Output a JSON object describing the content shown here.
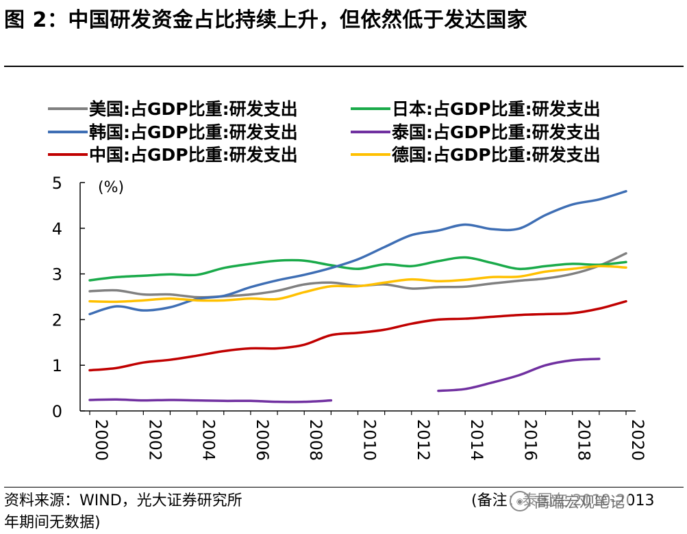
{
  "title": "图 2：中国研发资金占比持续上升，但依然低于发达国家",
  "source": "资料来源：WIND，光大证券研究所",
  "note": "(备注：泰国在 2010-2013",
  "note_continued": "年期间无数据)",
  "watermark": "高端宏观笔记",
  "chart_data": {
    "type": "line",
    "title": "",
    "ylabel": "(%)",
    "xlabel": "",
    "ylim": [
      0,
      5
    ],
    "yticks": [
      0,
      1,
      2,
      3,
      4,
      5
    ],
    "xlim": [
      2000,
      2020
    ],
    "xticks": [
      "2000",
      "2002",
      "2004",
      "2006",
      "2008",
      "2010",
      "2012",
      "2014",
      "2016",
      "2018",
      "2020"
    ],
    "legend_position": "top",
    "series": [
      {
        "name": "美国:占GDP比重:研发支出",
        "color": "#808080",
        "x": [
          2000,
          2001,
          2002,
          2003,
          2004,
          2005,
          2006,
          2007,
          2008,
          2009,
          2010,
          2011,
          2012,
          2013,
          2014,
          2015,
          2016,
          2017,
          2018,
          2019,
          2020
        ],
        "values": [
          2.62,
          2.64,
          2.55,
          2.55,
          2.49,
          2.51,
          2.55,
          2.63,
          2.77,
          2.81,
          2.74,
          2.77,
          2.68,
          2.71,
          2.72,
          2.79,
          2.85,
          2.9,
          3.0,
          3.18,
          3.45
        ]
      },
      {
        "name": "日本:占GDP比重:研发支出",
        "color": "#1aaa4a",
        "x": [
          2000,
          2001,
          2002,
          2003,
          2004,
          2005,
          2006,
          2007,
          2008,
          2009,
          2010,
          2011,
          2012,
          2013,
          2014,
          2015,
          2016,
          2017,
          2018,
          2019,
          2020
        ],
        "values": [
          2.86,
          2.93,
          2.96,
          2.99,
          2.98,
          3.13,
          3.22,
          3.29,
          3.29,
          3.19,
          3.11,
          3.21,
          3.17,
          3.28,
          3.36,
          3.24,
          3.11,
          3.17,
          3.22,
          3.2,
          3.26
        ]
      },
      {
        "name": "韩国:占GDP比重:研发支出",
        "color": "#3e6eb4",
        "x": [
          2000,
          2001,
          2002,
          2003,
          2004,
          2005,
          2006,
          2007,
          2008,
          2009,
          2010,
          2011,
          2012,
          2013,
          2014,
          2015,
          2016,
          2017,
          2018,
          2019,
          2020
        ],
        "values": [
          2.12,
          2.29,
          2.2,
          2.27,
          2.45,
          2.52,
          2.71,
          2.86,
          2.98,
          3.13,
          3.32,
          3.59,
          3.85,
          3.95,
          4.08,
          3.98,
          3.99,
          4.29,
          4.52,
          4.63,
          4.81
        ]
      },
      {
        "name": "泰国:占GDP比重:研发支出",
        "color": "#7030a0",
        "x": [
          2000,
          2001,
          2002,
          2003,
          2004,
          2005,
          2006,
          2007,
          2008,
          2009
        ],
        "values": [
          0.24,
          0.25,
          0.23,
          0.24,
          0.23,
          0.22,
          0.22,
          0.2,
          0.2,
          0.23
        ]
      },
      {
        "name": "泰国:占GDP比重:研发支出 (2013-2019)",
        "color": "#7030a0",
        "x": [
          2013,
          2014,
          2015,
          2016,
          2017,
          2018,
          2019
        ],
        "values": [
          0.44,
          0.48,
          0.62,
          0.78,
          1.0,
          1.11,
          1.14
        ]
      },
      {
        "name": "中国:占GDP比重:研发支出",
        "color": "#c00000",
        "x": [
          2000,
          2001,
          2002,
          2003,
          2004,
          2005,
          2006,
          2007,
          2008,
          2009,
          2010,
          2011,
          2012,
          2013,
          2014,
          2015,
          2016,
          2017,
          2018,
          2019,
          2020
        ],
        "values": [
          0.89,
          0.94,
          1.06,
          1.12,
          1.21,
          1.31,
          1.37,
          1.37,
          1.45,
          1.66,
          1.71,
          1.78,
          1.91,
          2.0,
          2.02,
          2.06,
          2.1,
          2.12,
          2.14,
          2.24,
          2.4
        ]
      },
      {
        "name": "德国:占GDP比重:研发支出",
        "color": "#ffc000",
        "x": [
          2000,
          2001,
          2002,
          2003,
          2004,
          2005,
          2006,
          2007,
          2008,
          2009,
          2010,
          2011,
          2012,
          2013,
          2014,
          2015,
          2016,
          2017,
          2018,
          2019,
          2020
        ],
        "values": [
          2.4,
          2.39,
          2.42,
          2.46,
          2.42,
          2.42,
          2.46,
          2.45,
          2.6,
          2.73,
          2.73,
          2.81,
          2.88,
          2.84,
          2.87,
          2.93,
          2.94,
          3.05,
          3.11,
          3.17,
          3.14
        ]
      }
    ],
    "legend": [
      {
        "label": "美国:占GDP比重:研发支出",
        "color": "#808080"
      },
      {
        "label": "日本:占GDP比重:研发支出",
        "color": "#1aaa4a"
      },
      {
        "label": "韩国:占GDP比重:研发支出",
        "color": "#3e6eb4"
      },
      {
        "label": "泰国:占GDP比重:研发支出",
        "color": "#7030a0"
      },
      {
        "label": "中国:占GDP比重:研发支出",
        "color": "#c00000"
      },
      {
        "label": "德国:占GDP比重:研发支出",
        "color": "#ffc000"
      }
    ]
  }
}
